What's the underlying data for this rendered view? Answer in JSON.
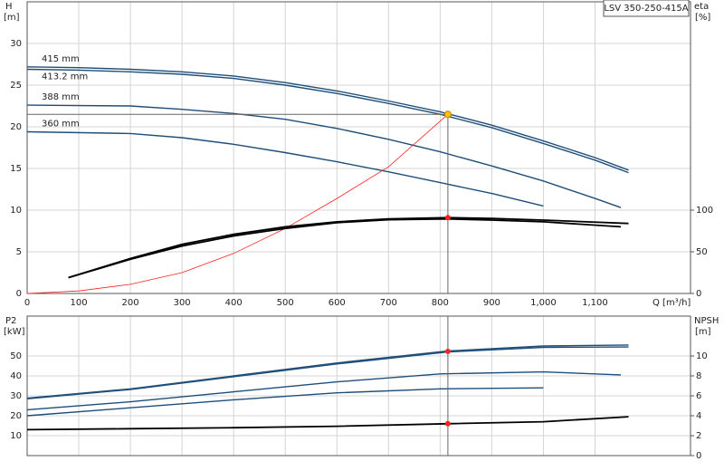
{
  "chart_data": [
    {
      "type": "line",
      "title": "LSV 350-250-415A",
      "ylabel": "H",
      "yunit": "[m]",
      "y2label": "eta",
      "y2unit": "[%]",
      "xlabel": "Q [m³/h]",
      "xlim": [
        0,
        1285
      ],
      "xticks": [
        0,
        100,
        200,
        300,
        400,
        500,
        600,
        700,
        800,
        900,
        {
          "value": 1000,
          "label": "1,000"
        },
        {
          "value": 1100,
          "label": "1,100"
        }
      ],
      "ylim": [
        0,
        35
      ],
      "yticks": [
        0,
        5,
        10,
        15,
        20,
        25,
        30
      ],
      "y2lim": [
        0,
        350
      ],
      "y2ticks": [
        0,
        50,
        100
      ],
      "grid": true,
      "series": [
        {
          "name": "415 mm",
          "color": "#1f4e79",
          "x": [
            0,
            100,
            200,
            300,
            400,
            500,
            600,
            700,
            800,
            900,
            1000,
            1100,
            1165
          ],
          "values": [
            27.2,
            27.1,
            26.9,
            26.6,
            26.1,
            25.3,
            24.3,
            23.1,
            21.8,
            20.2,
            18.3,
            16.3,
            14.8
          ]
        },
        {
          "name": "413.2 mm",
          "color": "#1f4e79",
          "x": [
            0,
            100,
            200,
            300,
            400,
            500,
            600,
            700,
            800,
            900,
            1000,
            1100,
            1165
          ],
          "values": [
            26.9,
            26.8,
            26.6,
            26.3,
            25.8,
            25.0,
            24.0,
            22.8,
            21.5,
            19.9,
            18.0,
            16.0,
            14.5
          ]
        },
        {
          "name": "388 mm",
          "color": "#1f4e79",
          "x": [
            0,
            200,
            300,
            400,
            500,
            600,
            700,
            800,
            900,
            1000,
            1100,
            1150
          ],
          "values": [
            22.6,
            22.5,
            22.1,
            21.6,
            20.9,
            19.8,
            18.5,
            17.0,
            15.3,
            13.5,
            11.4,
            10.3
          ]
        },
        {
          "name": "360 mm",
          "color": "#1f4e79",
          "x": [
            0,
            200,
            300,
            400,
            500,
            600,
            700,
            800,
            900,
            1000
          ],
          "values": [
            19.4,
            19.2,
            18.7,
            17.9,
            16.9,
            15.8,
            14.6,
            13.3,
            12.0,
            10.5
          ]
        },
        {
          "color": "#ff2020",
          "x": [
            0,
            100,
            200,
            300,
            400,
            500,
            600,
            700,
            815
          ],
          "values": [
            0,
            0.3,
            1.1,
            2.5,
            4.8,
            7.8,
            11.4,
            15.2,
            21.5
          ]
        },
        {
          "color": "#000000",
          "axis": "y2",
          "x": [
            80,
            200,
            300,
            400,
            500,
            600,
            700,
            815,
            900,
            1000,
            1165
          ],
          "values": [
            19,
            42,
            59,
            71,
            80,
            86,
            89.5,
            91,
            90,
            88,
            84
          ]
        },
        {
          "color": "#000000",
          "axis": "y2",
          "x": [
            80,
            200,
            300,
            400,
            500,
            600,
            700,
            815,
            900,
            1000,
            1150
          ],
          "values": [
            19,
            41,
            57,
            69,
            78,
            85,
            88.5,
            89.5,
            88,
            86,
            80
          ]
        }
      ],
      "operating_point": {
        "x": 815,
        "y": 21.5,
        "eta": 91
      }
    },
    {
      "type": "line",
      "ylabel": "P2",
      "yunit": "[kW]",
      "y2label": "NPSH",
      "y2unit": "[m]",
      "ylim": [
        0,
        70
      ],
      "yticks": [
        10,
        20,
        30,
        40,
        50
      ],
      "y2lim": [
        0,
        14
      ],
      "y2ticks": [
        0,
        2,
        4,
        6,
        8,
        10
      ],
      "grid": true,
      "series": [
        {
          "color": "#1f4e79",
          "x": [
            0,
            200,
            400,
            600,
            815,
            1000,
            1165
          ],
          "values": [
            28.8,
            33.5,
            40,
            46.5,
            52.5,
            55,
            55.5
          ]
        },
        {
          "color": "#1f4e79",
          "x": [
            0,
            200,
            400,
            600,
            815,
            1000,
            1165
          ],
          "values": [
            28.5,
            33.2,
            39.6,
            46,
            52,
            54.3,
            54.5
          ]
        },
        {
          "color": "#1f4e79",
          "x": [
            0,
            200,
            400,
            600,
            800,
            1000,
            1150
          ],
          "values": [
            23,
            27,
            32,
            37,
            41,
            42,
            40.5
          ]
        },
        {
          "color": "#1f4e79",
          "x": [
            0,
            200,
            400,
            600,
            800,
            1000
          ],
          "values": [
            20,
            24,
            28,
            31.5,
            33.5,
            34
          ]
        },
        {
          "color": "#000000",
          "axis": "y2",
          "x": [
            0,
            200,
            400,
            600,
            815,
            1000,
            1165
          ],
          "values": [
            2.6,
            2.7,
            2.8,
            2.95,
            3.2,
            3.4,
            3.9
          ]
        }
      ],
      "operating_point": {
        "x": 815,
        "y": 52.3,
        "npsh": 3.2
      }
    }
  ]
}
